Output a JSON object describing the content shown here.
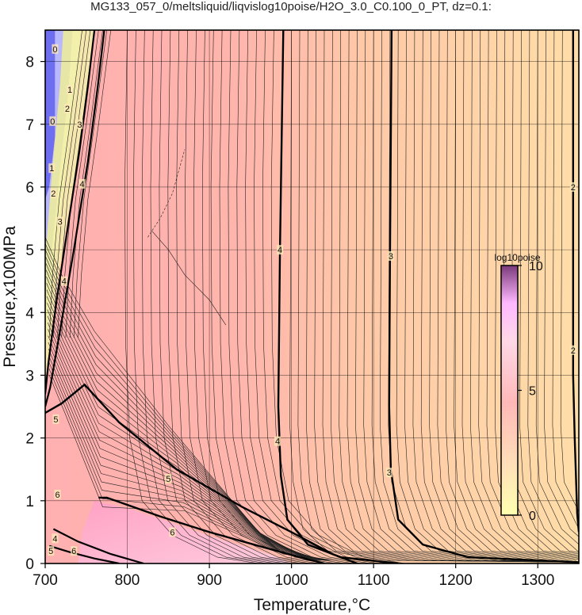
{
  "chart_data": {
    "type": "contour",
    "title": "MG133_057_0/meltsliquid/liqvislog10poise/H2O_3.0_C0.100_0_PT, dz=0.1:",
    "xlabel": "Temperature,°C",
    "ylabel": "Pressure,x100MPa",
    "xlim": [
      700,
      1350
    ],
    "ylim": [
      0,
      8.5
    ],
    "xticks": [
      700,
      800,
      900,
      1000,
      1100,
      1200,
      1300
    ],
    "yticks": [
      0,
      1,
      2,
      3,
      4,
      5,
      6,
      7,
      8
    ],
    "grid": true,
    "colorbar": {
      "title": "log10poise",
      "range": [
        0,
        10
      ],
      "ticks": [
        0,
        5,
        10
      ],
      "placement": "right-inside"
    },
    "contour_interval": 0.1,
    "major_contours": [
      {
        "level": "2",
        "points": [
          [
            1343,
            8.5
          ],
          [
            1343,
            6.0
          ],
          [
            1343,
            3.0
          ],
          [
            1345,
            2.0
          ],
          [
            1348,
            0.8
          ],
          [
            1350,
            0.5
          ]
        ]
      },
      {
        "level": "3",
        "points": [
          [
            1122,
            8.5
          ],
          [
            1120,
            5.0
          ],
          [
            1119,
            2.5
          ],
          [
            1121,
            1.5
          ],
          [
            1130,
            0.7
          ],
          [
            1160,
            0.3
          ],
          [
            1215,
            0.1
          ],
          [
            1350,
            0.02
          ]
        ]
      },
      {
        "level": "4",
        "points": [
          [
            990,
            8.5
          ],
          [
            986,
            5.0
          ],
          [
            984,
            2.5
          ],
          [
            987,
            1.4
          ],
          [
            995,
            0.7
          ],
          [
            1020,
            0.3
          ],
          [
            1060,
            0.1
          ],
          [
            1130,
            0.0
          ]
        ]
      },
      {
        "level": "5",
        "points": [
          [
            700,
            2.4
          ],
          [
            720,
            2.55
          ],
          [
            748,
            2.85
          ],
          [
            790,
            2.25
          ],
          [
            860,
            1.5
          ],
          [
            940,
            0.9
          ],
          [
            1000,
            0.5
          ],
          [
            1050,
            0.15
          ],
          [
            1080,
            0.0
          ]
        ]
      },
      {
        "level": "6",
        "points": [
          [
            765,
            1.05
          ],
          [
            775,
            1.05
          ],
          [
            840,
            0.75
          ],
          [
            900,
            0.5
          ],
          [
            960,
            0.28
          ],
          [
            1010,
            0.1
          ],
          [
            1040,
            0.0
          ]
        ]
      }
    ],
    "contour_labels": [
      {
        "text": "2",
        "x": 1343,
        "y": 6.0
      },
      {
        "text": "2",
        "x": 1343,
        "y": 3.4
      },
      {
        "text": "3",
        "x": 1121,
        "y": 4.9
      },
      {
        "text": "3",
        "x": 1119,
        "y": 1.45
      },
      {
        "text": "4",
        "x": 986,
        "y": 5.0
      },
      {
        "text": "4",
        "x": 983,
        "y": 1.95
      },
      {
        "text": "4",
        "x": 745,
        "y": 6.05
      },
      {
        "text": "4",
        "x": 723,
        "y": 4.5
      },
      {
        "text": "5",
        "x": 713,
        "y": 2.3
      },
      {
        "text": "5",
        "x": 850,
        "y": 1.35
      },
      {
        "text": "6",
        "x": 715,
        "y": 1.1
      },
      {
        "text": "6",
        "x": 855,
        "y": 0.5
      },
      {
        "text": "3",
        "x": 718,
        "y": 5.45
      },
      {
        "text": "3",
        "x": 742,
        "y": 7.0
      },
      {
        "text": "2",
        "x": 727,
        "y": 7.25
      },
      {
        "text": "2",
        "x": 710,
        "y": 5.9
      },
      {
        "text": "1",
        "x": 730,
        "y": 7.55
      },
      {
        "text": "1",
        "x": 708,
        "y": 6.3
      },
      {
        "text": "0",
        "x": 712,
        "y": 8.2
      },
      {
        "text": "0",
        "x": 709,
        "y": 7.05
      },
      {
        "text": "4",
        "x": 712,
        "y": 0.4
      },
      {
        "text": "5",
        "x": 707,
        "y": 0.2
      },
      {
        "text": "6",
        "x": 735,
        "y": 0.2
      }
    ]
  }
}
